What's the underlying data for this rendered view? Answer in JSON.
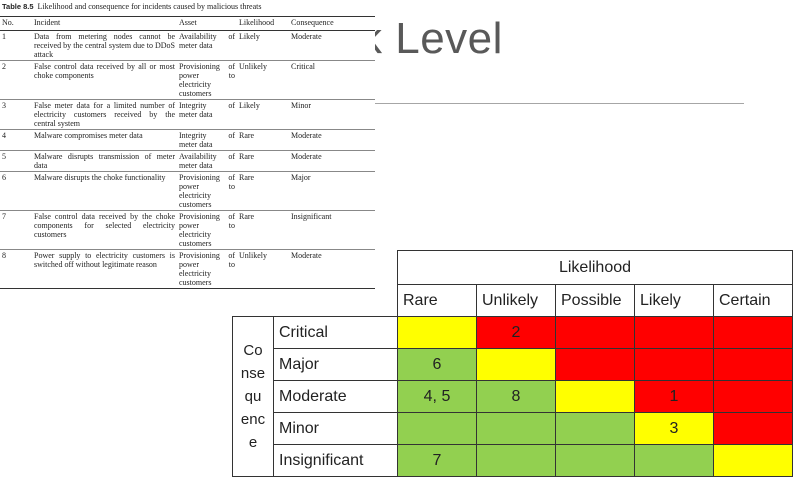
{
  "slide": {
    "title": "k Level"
  },
  "book_table": {
    "caption_label": "Table 8.5",
    "caption_text": "Likelihood and consequence for incidents caused by malicious threats",
    "headers": [
      "No.",
      "Incident",
      "Asset",
      "Likelihood",
      "Consequence"
    ],
    "rows": [
      {
        "no": "1",
        "incident": "Data from metering nodes cannot be received by the central system due to DDoS attack",
        "asset": "Availability of meter data",
        "likelihood": "Likely",
        "consequence": "Moderate"
      },
      {
        "no": "2",
        "incident": "False control data received by all or most choke components",
        "asset": "Provisioning of power to electricity customers",
        "likelihood": "Unlikely",
        "consequence": "Critical"
      },
      {
        "no": "3",
        "incident": "False meter data for a limited number of electricity customers received by the central system",
        "asset": "Integrity of meter data",
        "likelihood": "Likely",
        "consequence": "Minor"
      },
      {
        "no": "4",
        "incident": "Malware compromises meter data",
        "asset": "Integrity of meter data",
        "likelihood": "Rare",
        "consequence": "Moderate"
      },
      {
        "no": "5",
        "incident": "Malware disrupts transmission of meter data",
        "asset": "Availability of meter data",
        "likelihood": "Rare",
        "consequence": "Moderate"
      },
      {
        "no": "6",
        "incident": "Malware disrupts the choke functionality",
        "asset": "Provisioning of power to electricity customers",
        "likelihood": "Rare",
        "consequence": "Major"
      },
      {
        "no": "7",
        "incident": "False control data received by the choke components for selected electricity customers",
        "asset": "Provisioning of power to electricity customers",
        "likelihood": "Rare",
        "consequence": "Insignificant"
      },
      {
        "no": "8",
        "incident": "Power supply to electricity customers is switched off without legitimate reason",
        "asset": "Provisioning of power to electricity customers",
        "likelihood": "Unlikely",
        "consequence": "Moderate"
      }
    ]
  },
  "matrix": {
    "likelihood_label": "Likelihood",
    "columns": [
      "Rare",
      "Unlikely",
      "Possible",
      "Likely",
      "Certain"
    ],
    "consequence_label": "Co\nnse\nqu\nenc\ne",
    "rows": [
      {
        "label": "Critical",
        "cells": [
          "",
          "2",
          "",
          "",
          ""
        ],
        "colors": [
          "y",
          "r",
          "r",
          "r",
          "r"
        ]
      },
      {
        "label": "Major",
        "cells": [
          "6",
          "",
          "",
          "",
          ""
        ],
        "colors": [
          "g",
          "y",
          "r",
          "r",
          "r"
        ]
      },
      {
        "label": "Moderate",
        "cells": [
          "4, 5",
          "8",
          "",
          "1",
          ""
        ],
        "colors": [
          "g",
          "g",
          "y",
          "r",
          "r"
        ]
      },
      {
        "label": "Minor",
        "cells": [
          "",
          "",
          "",
          "3",
          ""
        ],
        "colors": [
          "g",
          "g",
          "g",
          "y",
          "r"
        ]
      },
      {
        "label": "Insignificant",
        "cells": [
          "7",
          "",
          "",
          "",
          ""
        ],
        "colors": [
          "g",
          "g",
          "g",
          "g",
          "y"
        ]
      }
    ],
    "color_hex": {
      "y": "#ffff00",
      "r": "#ff0000",
      "g": "#92d050"
    }
  }
}
